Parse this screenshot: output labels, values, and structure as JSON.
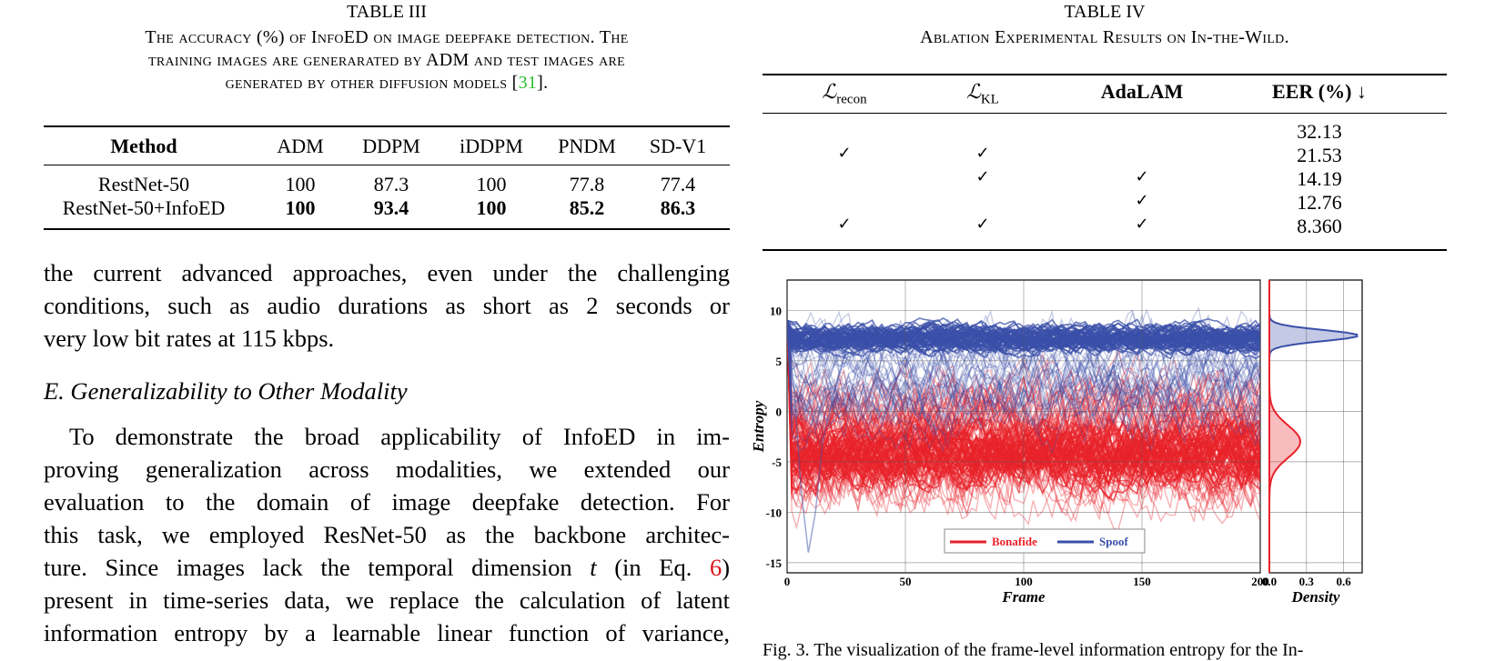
{
  "table3": {
    "label": "TABLE III",
    "caption_lines": [
      "The accuracy (%) of InfoED on image deepfake detection. The",
      "training images are generarated by ADM and test images are",
      "generated by other diffusion models [31]."
    ],
    "caption_ref": "31",
    "headers": [
      "Method",
      "ADM",
      "DDPM",
      "iDDPM",
      "PNDM",
      "SD-V1"
    ],
    "rows": [
      [
        "RestNet-50",
        "100",
        "87.3",
        "100",
        "77.8",
        "77.4"
      ],
      [
        "RestNet-50+InfoED",
        "100",
        "93.4",
        "100",
        "85.2",
        "86.3"
      ]
    ]
  },
  "table4": {
    "label": "TABLE IV",
    "caption": "Ablation Experimental Results on In-the-Wild.",
    "headers": [
      "ℒ",
      "recon",
      "ℒ",
      "KL",
      "AdaLAM",
      "EER (%) ↓"
    ],
    "check": "✓",
    "rows": [
      {
        "recon": false,
        "kl": false,
        "adalam": false,
        "eer": "32.13"
      },
      {
        "recon": true,
        "kl": true,
        "adalam": false,
        "eer": "21.53"
      },
      {
        "recon": false,
        "kl": true,
        "adalam": true,
        "eer": "14.19"
      },
      {
        "recon": false,
        "kl": false,
        "adalam": true,
        "eer": "12.76"
      },
      {
        "recon": true,
        "kl": true,
        "adalam": true,
        "eer": "8.360"
      }
    ]
  },
  "body": {
    "para1": [
      "the current advanced approaches, even under the challenging",
      "conditions, such as audio durations as short as 2 seconds or",
      "very low bit rates at 115 kbps."
    ],
    "section_title": "E.  Generalizability to Other Modality",
    "para2": [
      "To demonstrate the broad applicability of InfoED in im-",
      "proving generalization across modalities, we extended our",
      "evaluation to the domain of image deepfake detection. For",
      "this task, we employed ResNet-50 as the backbone architec-",
      "ture. Since images lack the temporal dimension",
      "(in Eq.",
      ")",
      "present in time-series data, we replace the calculation of latent",
      "information entropy by a learnable linear function of variance,"
    ],
    "var_t": "t",
    "eq_ref": "6"
  },
  "figure": {
    "caption_partial": "Fig. 3.   The visualization of the frame-level information entropy for the In-",
    "colors": {
      "bonafide": "#e8222a",
      "spoof": "#3a4fa8"
    },
    "chart_data": [
      {
        "type": "line",
        "xlabel": "Frame",
        "ylabel": "Entropy",
        "xlim": [
          0,
          200
        ],
        "ylim": [
          -16,
          13
        ],
        "xticks": [
          "0",
          "50",
          "100",
          "150",
          "200"
        ],
        "yticks": [
          "10",
          "5",
          "0",
          "-5",
          "-10",
          "-15"
        ],
        "grid": true,
        "legend_position": "bottom-center",
        "series": [
          {
            "name": "Bonafide",
            "mean_entropy": -3.0,
            "spread_min": -12,
            "spread_max": 10
          },
          {
            "name": "Spoof",
            "mean_entropy": 7.5,
            "spread_min": -15,
            "spread_max": 11
          }
        ]
      },
      {
        "type": "area",
        "xlabel": "Density",
        "xlim": [
          0,
          0.75
        ],
        "xticks": [
          "0.0",
          "0.3",
          "0.6"
        ],
        "ylim": [
          -16,
          13
        ],
        "series": [
          {
            "name": "Spoof",
            "peak_y": 7.5,
            "peak_density": 0.72
          },
          {
            "name": "Bonafide",
            "peak_y": -3.0,
            "peak_density": 0.25
          }
        ]
      }
    ]
  }
}
